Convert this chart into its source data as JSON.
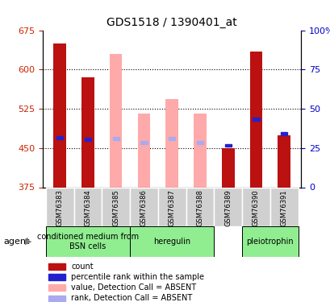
{
  "title": "GDS1518 / 1390401_at",
  "samples": [
    "GSM76383",
    "GSM76384",
    "GSM76385",
    "GSM76386",
    "GSM76387",
    "GSM76388",
    "GSM76389",
    "GSM76390",
    "GSM76391"
  ],
  "ylim_left": [
    375,
    675
  ],
  "ylim_right": [
    0,
    100
  ],
  "yticks_left": [
    375,
    450,
    525,
    600,
    675
  ],
  "yticks_right": [
    0,
    25,
    50,
    75,
    100
  ],
  "bar_bottom": 375,
  "absent": [
    false,
    false,
    true,
    true,
    true,
    true,
    false,
    false,
    false
  ],
  "count_top": [
    650,
    585,
    null,
    null,
    null,
    null,
    450,
    635,
    475
  ],
  "count_absent_top": [
    null,
    null,
    630,
    516,
    543,
    516,
    null,
    null,
    null
  ],
  "rank_present": [
    470,
    467,
    null,
    null,
    null,
    null,
    null,
    505,
    477
  ],
  "rank_absent": [
    null,
    null,
    468,
    460,
    468,
    460,
    455,
    null,
    null
  ],
  "agents": [
    {
      "label": "conditioned medium from\nBSN cells",
      "cols": [
        0,
        1,
        2
      ],
      "color": "#90ee90"
    },
    {
      "label": "heregulin",
      "cols": [
        3,
        4,
        5
      ],
      "color": "#90ee90"
    },
    {
      "label": "pleiotrophin",
      "cols": [
        7,
        8
      ],
      "color": "#90ee90"
    }
  ],
  "agent_label_col_absent": [
    6
  ],
  "agent_absent_label": "conditioned medium from\nBSN cells",
  "colors": {
    "count_present": "#bb1111",
    "count_absent": "#ffaaaa",
    "rank_present": "#2222cc",
    "rank_absent": "#aaaaee",
    "grid": "#000000",
    "left_tick": "#cc2200",
    "right_tick": "#0000cc"
  },
  "legend": [
    {
      "color": "#bb1111",
      "label": "count"
    },
    {
      "color": "#2222cc",
      "label": "percentile rank within the sample"
    },
    {
      "color": "#ffaaaa",
      "label": "value, Detection Call = ABSENT"
    },
    {
      "color": "#aaaaee",
      "label": "rank, Detection Call = ABSENT"
    }
  ]
}
